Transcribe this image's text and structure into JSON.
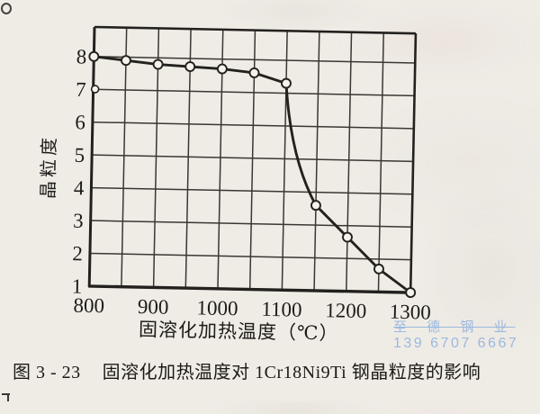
{
  "chart_data": {
    "type": "line",
    "title": "",
    "xlabel": "固溶化加热温度（℃）",
    "ylabel": "晶粒度",
    "x": [
      800,
      850,
      900,
      950,
      1000,
      1050,
      1100,
      1150,
      1200,
      1250,
      1300
    ],
    "values": [
      8.0,
      7.9,
      7.8,
      7.75,
      7.7,
      7.6,
      7.3,
      3.6,
      2.65,
      1.7,
      1.0
    ],
    "xticks": [
      800,
      900,
      1000,
      1100,
      1200,
      1300
    ],
    "yticks": [
      1,
      2,
      3,
      4,
      5,
      6,
      7,
      8
    ],
    "xlim": [
      800,
      1300
    ],
    "ylim": [
      1,
      8.9
    ],
    "grid": true,
    "x_minor_step": 50,
    "marker": "open-circle",
    "legend": "none"
  },
  "caption": {
    "number": "图 3 - 23",
    "title": "固溶化加热温度对 1Cr18Ni9Ti 钢晶粒度的影响"
  },
  "watermark": {
    "company": "至 德 钢 业",
    "phone": "139 6707 6667",
    "color": "#93b4de"
  },
  "colors": {
    "paper": "#efece6",
    "ink": "#23211e",
    "grid_line": "#3a3733",
    "marker_fill": "#f5f2ec"
  }
}
